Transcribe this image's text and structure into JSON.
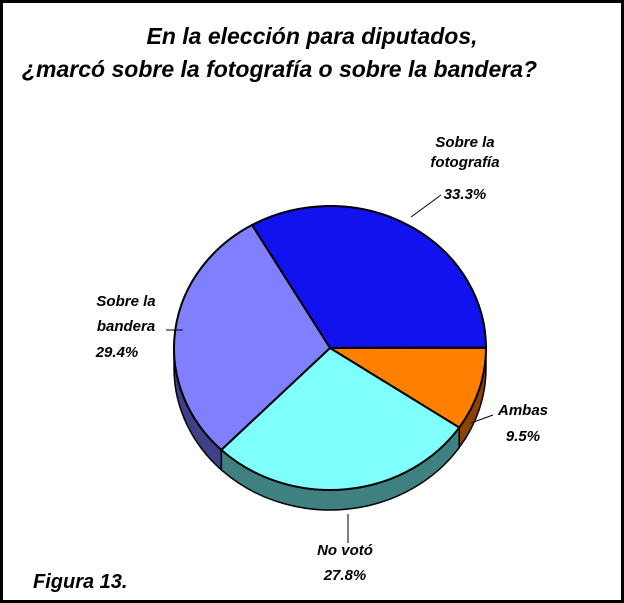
{
  "chart_data": {
    "type": "pie",
    "title": [
      "En la elección para diputados,",
      "¿marcó sobre la fotografía o sobre la bandera?"
    ],
    "categories": [
      "Sobre la fotografía",
      "Ambas",
      "No votó",
      "Sobre la bandera"
    ],
    "values": [
      33.3,
      9.5,
      27.8,
      29.4
    ],
    "value_labels": [
      "33.3%",
      "9.5%",
      "27.8%",
      "29.4%"
    ],
    "colors": [
      "#1212ee",
      "#ff8000",
      "#80ffff",
      "#8080ff"
    ],
    "side_colors": [
      "#0a0a80",
      "#8a4400",
      "#3f8080",
      "#404088"
    ],
    "footnote": "Figura 13."
  }
}
